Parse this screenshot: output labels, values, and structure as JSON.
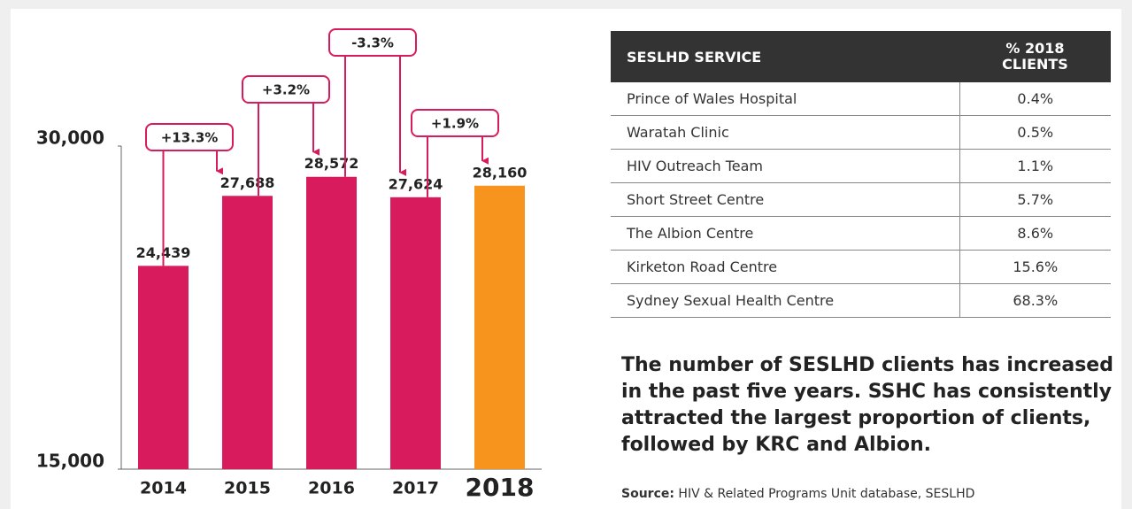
{
  "chart_data": {
    "type": "bar",
    "categories": [
      "2014",
      "2015",
      "2016",
      "2017",
      "2018"
    ],
    "values": [
      24439,
      27688,
      28572,
      27624,
      28160
    ],
    "value_labels": [
      "24,439",
      "27,688",
      "28,572",
      "27,624",
      "28,160"
    ],
    "colors": [
      "#d81b5c",
      "#d81b5c",
      "#d81b5c",
      "#d81b5c",
      "#f7941d"
    ],
    "annotations": [
      "+13.3%",
      "+3.2%",
      "-3.3%",
      "+1.9%"
    ],
    "annotation_color": "#d81b5c",
    "ylim": [
      15000,
      30000
    ],
    "yticks": [
      {
        "value": 15000,
        "label": "15,000"
      },
      {
        "value": 30000,
        "label": "30,000"
      }
    ],
    "grid": false
  },
  "table": {
    "header": [
      "SESLHD SERVICE",
      "% 2018 CLIENTS"
    ],
    "rows": [
      [
        "Prince of Wales Hospital",
        "0.4%"
      ],
      [
        "Waratah Clinic",
        "0.5%"
      ],
      [
        "HIV Outreach Team",
        "1.1%"
      ],
      [
        "Short Street Centre",
        "5.7%"
      ],
      [
        "The Albion Centre",
        "8.6%"
      ],
      [
        "Kirketon Road Centre",
        "15.6%"
      ],
      [
        "Sydney Sexual Health Centre",
        "68.3%"
      ]
    ]
  },
  "summary": "The number of SESLHD clients has increased in the past five years. SSHC has consistently attracted the largest proportion of clients, followed by KRC and Albion.",
  "source": {
    "label": "Source:",
    "text": "HIV & Related Programs Unit database, SESLHD"
  }
}
